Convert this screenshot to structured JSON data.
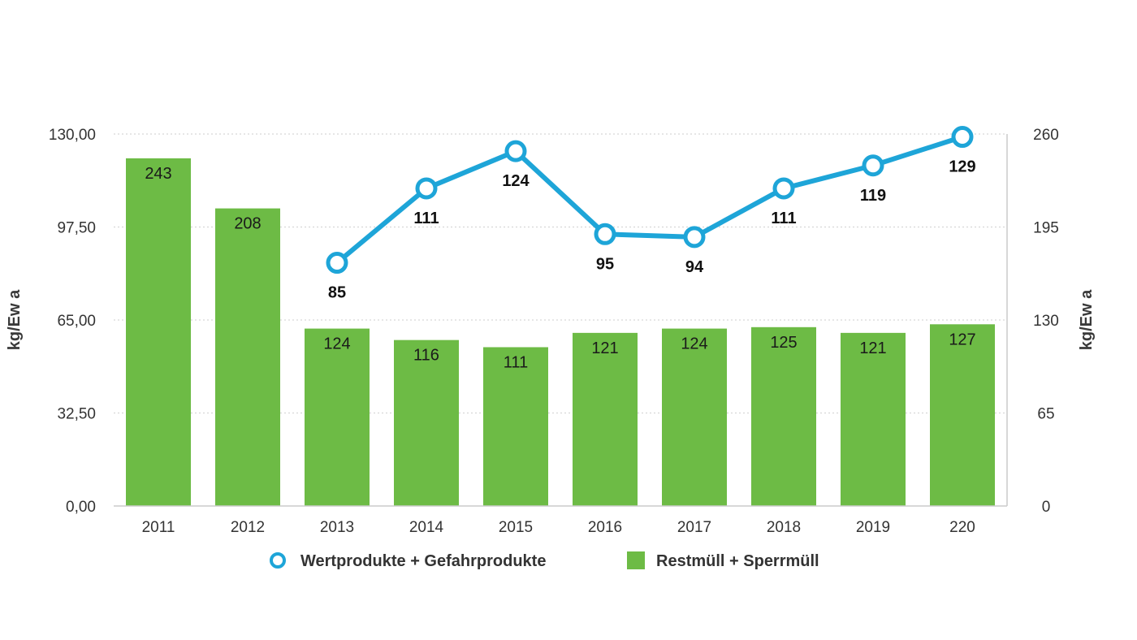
{
  "chart_data": {
    "type": "bar",
    "categories": [
      "2011",
      "2012",
      "2013",
      "2014",
      "2015",
      "2016",
      "2017",
      "2018",
      "2019",
      "220"
    ],
    "ylabel_left": "kg/Ew a",
    "ylabel_right": "kg/Ew a",
    "yticks_left": [
      "0,00",
      "32,50",
      "65,00",
      "97,50",
      "130,00"
    ],
    "yticks_right": [
      "0",
      "65",
      "130",
      "195",
      "260"
    ],
    "ylim_left": [
      0,
      130
    ],
    "ylim_right": [
      0,
      260
    ],
    "grid": true,
    "legend_position": "bottom",
    "series": [
      {
        "name": "Wertprodukte + Gefahrprodukte",
        "chart_type": "line",
        "axis": "left",
        "color": "#1ea5d8",
        "values": [
          null,
          null,
          85,
          111,
          124,
          95,
          94,
          111,
          119,
          129
        ],
        "labels": [
          "",
          "",
          "85",
          "111",
          "124",
          "95",
          "94",
          "111",
          "119",
          "129"
        ]
      },
      {
        "name": "Restmüll + Sperrmüll",
        "chart_type": "bar",
        "axis": "right",
        "color": "#6dbb45",
        "values": [
          243,
          208,
          124,
          116,
          111,
          121,
          124,
          125,
          121,
          127
        ],
        "labels": [
          "243",
          "208",
          "124",
          "116",
          "111",
          "121",
          "124",
          "125",
          "121",
          "127"
        ]
      }
    ]
  }
}
